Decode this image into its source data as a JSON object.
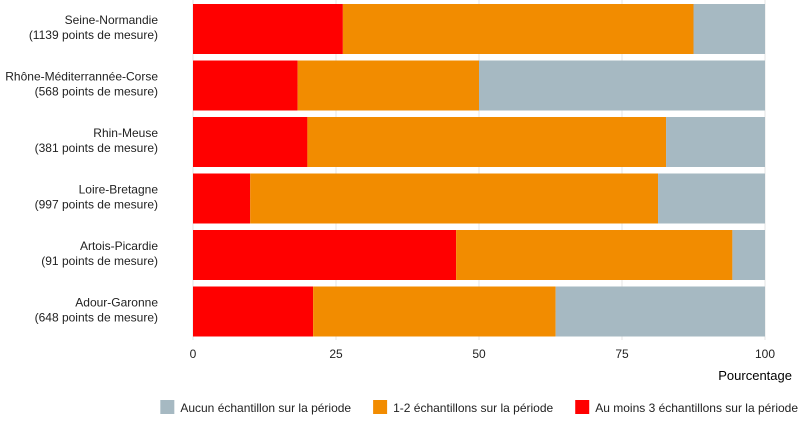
{
  "chart_data": {
    "type": "bar",
    "orientation": "horizontal",
    "stacked": true,
    "title": "",
    "xlabel": "Pourcentage",
    "ylabel": "",
    "xlim": [
      0,
      100
    ],
    "xticks": [
      "0",
      "25",
      "50",
      "75",
      "100"
    ],
    "legend_position": "bottom-right",
    "categories": [
      {
        "name": "Seine-Normandie",
        "count": "(1139 points de mesure)"
      },
      {
        "name": "Rhône-Méditerrannée-Corse",
        "count": "(568 points de mesure)"
      },
      {
        "name": "Rhin-Meuse",
        "count": "(381 points de mesure)"
      },
      {
        "name": "Loire-Bretagne",
        "count": "(997 points de mesure)"
      },
      {
        "name": "Artois-Picardie",
        "count": "(91 points de mesure)"
      },
      {
        "name": "Adour-Garonne",
        "count": "(648 points de mesure)"
      }
    ],
    "series": [
      {
        "name": "Au moins 3 échantillons sur la période",
        "color": "#ff0000",
        "values": [
          26.2,
          18.3,
          20.0,
          10.0,
          46.0,
          21.0
        ]
      },
      {
        "name": "1-2 échantillons sur la période",
        "color": "#f28c00",
        "values": [
          61.3,
          31.7,
          62.7,
          71.3,
          48.3,
          42.4
        ]
      },
      {
        "name": "Aucun échantillon sur la période",
        "color": "#a6b9c2",
        "values": [
          12.5,
          50.0,
          17.3,
          18.7,
          5.7,
          36.6
        ]
      }
    ],
    "legend_order": [
      2,
      1,
      0
    ]
  }
}
